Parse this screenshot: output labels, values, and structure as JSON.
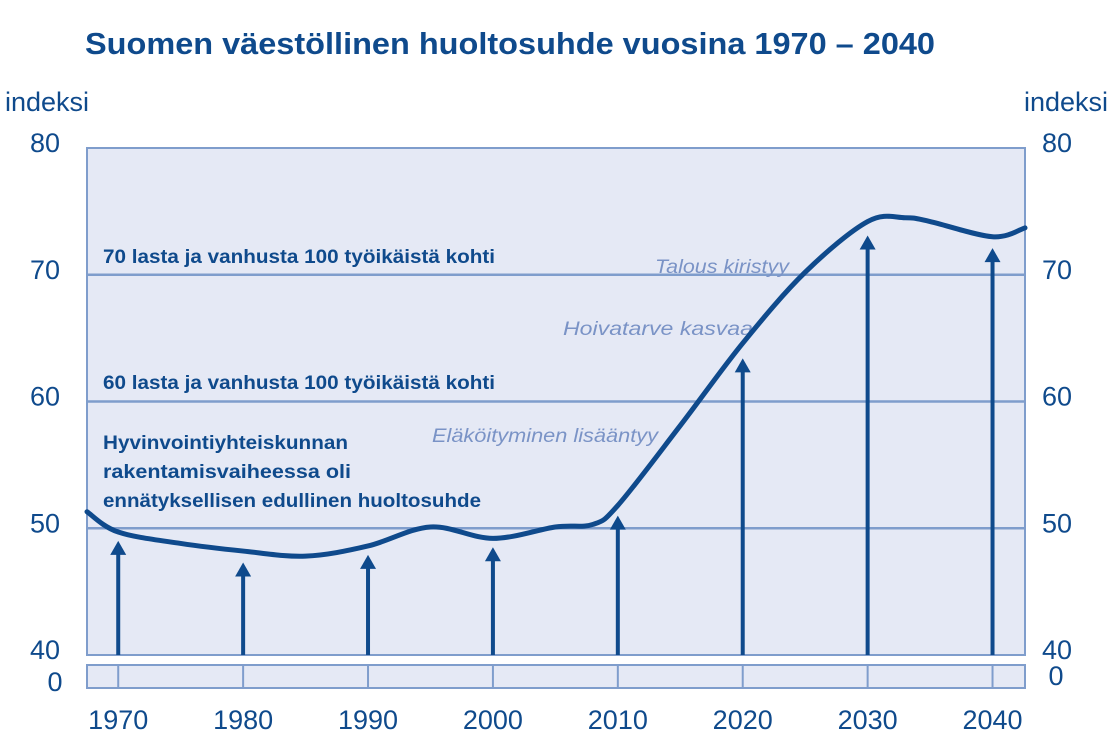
{
  "chart_data": {
    "type": "line",
    "title": "Suomen väestöllinen huoltosuhde vuosina 1970 – 2040",
    "y_label": "indeksi",
    "y2_label": "indeksi",
    "x": [
      1967.5,
      1970,
      1975,
      1980,
      1985,
      1990,
      1995,
      2000,
      2005,
      2008,
      2010,
      2015,
      2020,
      2025,
      2030,
      2033,
      2035,
      2040,
      2042.6
    ],
    "values": [
      51.3,
      49.7,
      48.8,
      48.2,
      47.8,
      48.6,
      50.1,
      49.2,
      50.1,
      50.3,
      51.8,
      58.1,
      64.6,
      70.2,
      74.2,
      74.5,
      74.2,
      73.0,
      73.7
    ],
    "color": "#0f4a8c",
    "arrow_x": [
      1970,
      1980,
      1990,
      2000,
      2010,
      2020,
      2030,
      2040
    ],
    "arrow_values": [
      49.0,
      47.3,
      47.9,
      48.5,
      51.0,
      63.4,
      73.1,
      72.1
    ],
    "xlim": [
      1967.5,
      2042.6
    ],
    "xticks": [
      1970,
      1980,
      1990,
      2000,
      2010,
      2020,
      2030,
      2040
    ],
    "ylim": [
      40,
      80
    ],
    "yticks": [
      40,
      50,
      60,
      70,
      80
    ],
    "y2lim": [
      40,
      80
    ],
    "y2ticks": [
      40,
      50,
      60,
      70,
      80
    ],
    "break_tick": 0,
    "y2_break_tick": 0,
    "grid": true,
    "reference_labels": [
      "70 lasta ja vanhusta 100 työikäistä kohti",
      "60 lasta ja vanhusta 100 työikäistä kohti"
    ],
    "note_lines": [
      "Hyvinvointiyhteiskunnan",
      "rakentamisvaiheessa oli",
      "ennätyksellisen edullinen huoltosuhde"
    ],
    "italic_labels": [
      "Talous kiristyy",
      "Hoivatarve kasvaa",
      "Eläköityminen lisääntyy"
    ]
  }
}
